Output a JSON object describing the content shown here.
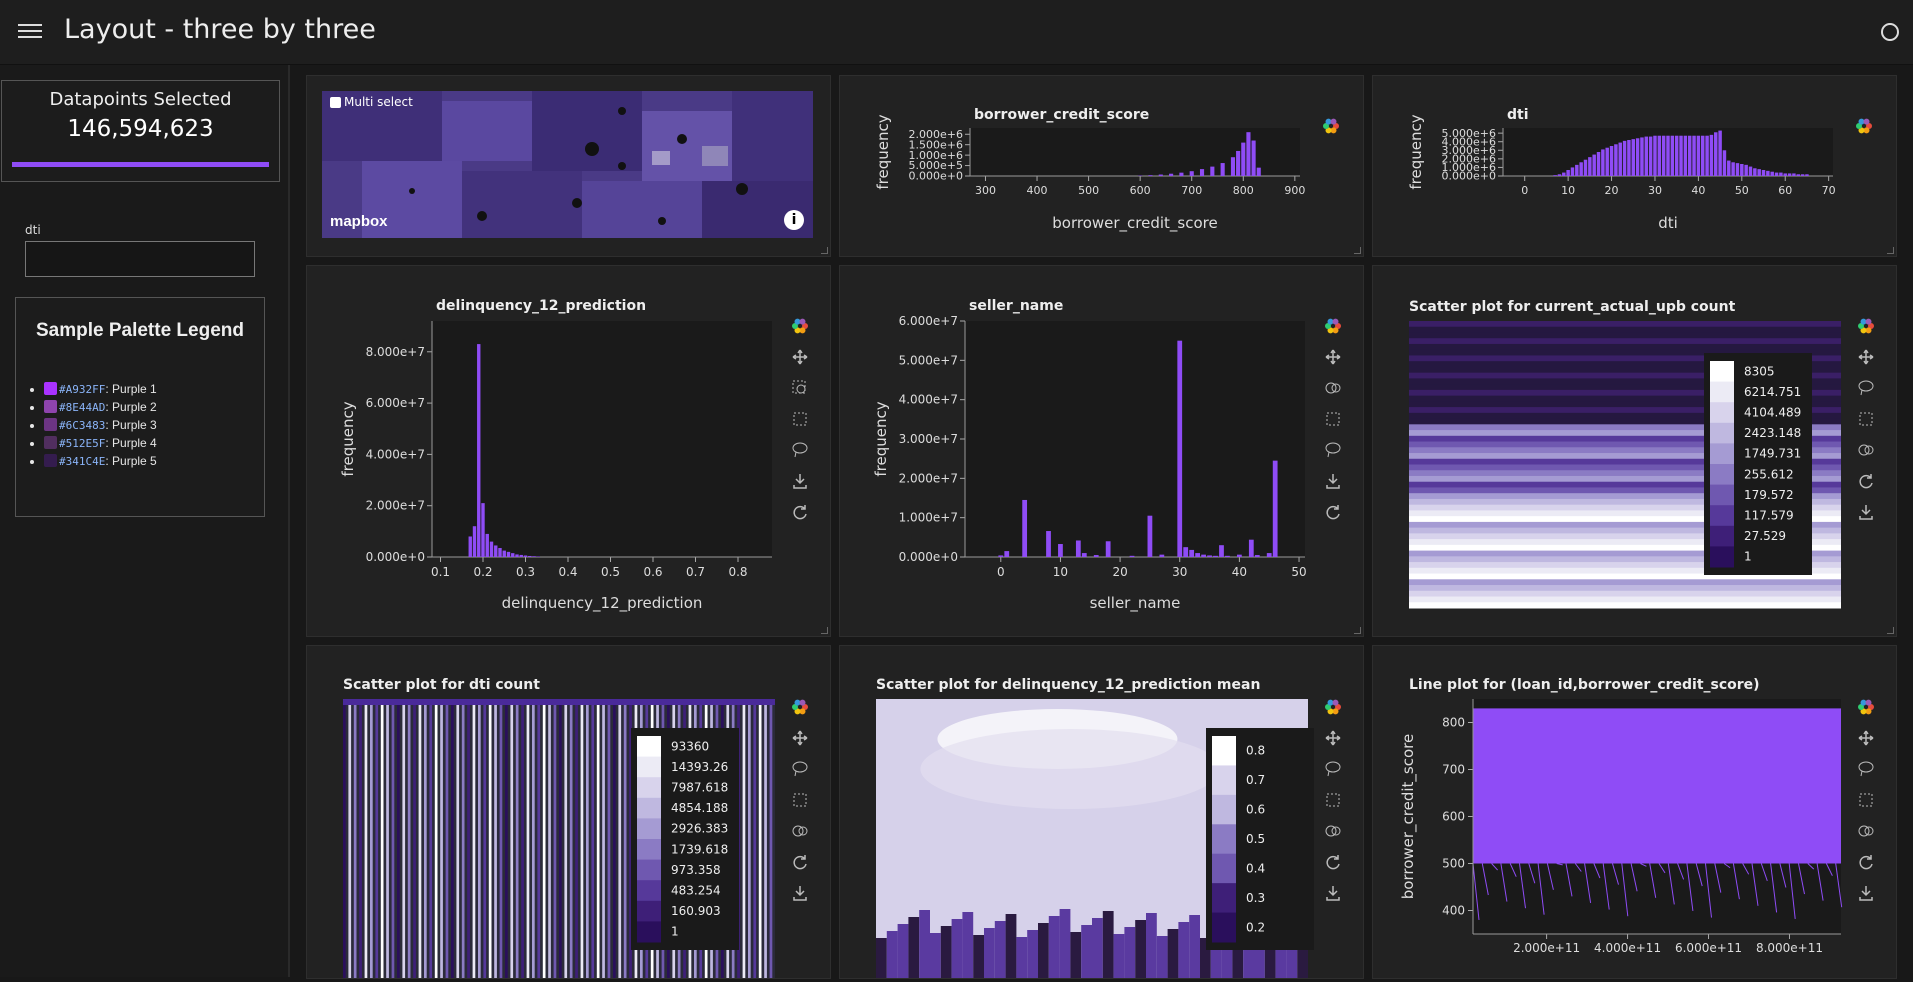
{
  "header": {
    "title": "Layout - three by three"
  },
  "sidebar": {
    "datapoints_title": "Datapoints Selected",
    "datapoints_value": "146,594,623",
    "datapoints_fill": 1.0,
    "dti_label": "dti",
    "dti_value": "",
    "legend_title": "Sample Palette Legend",
    "legend": [
      {
        "hex": "#A932FF",
        "label": ": Purple 1"
      },
      {
        "hex": "#8E44AD",
        "label": ": Purple 2"
      },
      {
        "hex": "#6C3483",
        "label": ": Purple 3"
      },
      {
        "hex": "#512E5F",
        "label": ": Purple 4"
      },
      {
        "hex": "#341C4E",
        "label": ": Purple 5"
      }
    ]
  },
  "map": {
    "multi_select_label": "Multi select",
    "logo_text": "mapbox",
    "info_icon": "info-icon"
  },
  "toolbar_icons": [
    "bokeh-logo-icon",
    "pan-icon",
    "box-zoom-icon",
    "box-select-icon",
    "lasso-icon",
    "save-icon",
    "reset-icon",
    "wheel-zoom-icon"
  ],
  "colors": {
    "accent": "#8f4cf6",
    "panel": "#222222",
    "background": "#181818"
  },
  "chart_data": [
    {
      "id": "borrower_credit_score",
      "type": "bar",
      "title": "borrower_credit_score",
      "xlabel": "borrower_credit_score",
      "ylabel": "frequency",
      "xticks": [
        "300",
        "400",
        "500",
        "600",
        "700",
        "800",
        "900"
      ],
      "yticks": [
        "0.000e+0",
        "5.000e+5",
        "1.000e+6",
        "1.500e+6",
        "2.000e+6"
      ],
      "xlim": [
        270,
        910
      ],
      "ylim": [
        0,
        2300000
      ],
      "x": [
        600,
        620,
        640,
        660,
        680,
        700,
        720,
        740,
        760,
        780,
        790,
        800,
        810,
        820,
        830
      ],
      "values": [
        20000,
        40000,
        70000,
        110000,
        160000,
        230000,
        330000,
        450000,
        620000,
        900000,
        1200000,
        1600000,
        2100000,
        1700000,
        400000
      ]
    },
    {
      "id": "dti",
      "type": "bar",
      "title": "dti",
      "xlabel": "dti",
      "ylabel": "frequency",
      "xticks": [
        "0",
        "10",
        "20",
        "30",
        "40",
        "50",
        "60",
        "70"
      ],
      "yticks": [
        "0.000e+0",
        "1.000e+6",
        "2.000e+6",
        "3.000e+6",
        "4.000e+6",
        "5.000e+6"
      ],
      "xlim": [
        -5,
        71
      ],
      "ylim": [
        0,
        5600000
      ],
      "x": [
        7,
        8,
        9,
        10,
        11,
        12,
        13,
        14,
        15,
        16,
        17,
        18,
        19,
        20,
        21,
        22,
        23,
        24,
        25,
        26,
        27,
        28,
        29,
        30,
        31,
        32,
        33,
        34,
        35,
        36,
        37,
        38,
        39,
        40,
        41,
        42,
        43,
        44,
        45,
        46,
        47,
        48,
        49,
        50,
        51,
        52,
        53,
        54,
        55,
        56,
        57,
        58,
        59,
        60,
        61,
        62,
        63,
        64,
        65
      ],
      "values": [
        100000,
        200000,
        400000,
        700000,
        1000000,
        1300000,
        1600000,
        1900000,
        2200000,
        2500000,
        2800000,
        3100000,
        3300000,
        3500000,
        3700000,
        3900000,
        4100000,
        4200000,
        4300000,
        4400000,
        4500000,
        4600000,
        4600000,
        4700000,
        4700000,
        4700000,
        4700000,
        4700000,
        4700000,
        4700000,
        4700000,
        4700000,
        4700000,
        4700000,
        4700000,
        4700000,
        4800000,
        5100000,
        5300000,
        3000000,
        1800000,
        1600000,
        1500000,
        1400000,
        1300000,
        1100000,
        900000,
        800000,
        700000,
        600000,
        500000,
        400000,
        400000,
        300000,
        300000,
        300000,
        200000,
        200000,
        200000
      ]
    },
    {
      "id": "delinquency_12_prediction",
      "type": "bar",
      "title": "delinquency_12_prediction",
      "xlabel": "delinquency_12_prediction",
      "ylabel": "frequency",
      "xticks": [
        "0.1",
        "0.2",
        "0.3",
        "0.4",
        "0.5",
        "0.6",
        "0.7",
        "0.8"
      ],
      "yticks": [
        "0.000e+0",
        "2.000e+7",
        "4.000e+7",
        "6.000e+7",
        "8.000e+7"
      ],
      "xlim": [
        0.08,
        0.88
      ],
      "ylim": [
        0,
        92000000
      ],
      "x": [
        0.17,
        0.18,
        0.19,
        0.2,
        0.21,
        0.22,
        0.23,
        0.24,
        0.25,
        0.26,
        0.27,
        0.28,
        0.29,
        0.3,
        0.31,
        0.32,
        0.33
      ],
      "values": [
        8000000,
        12000000,
        83000000,
        21000000,
        9000000,
        6000000,
        4500000,
        3500000,
        2500000,
        2000000,
        1500000,
        1000000,
        800000,
        600000,
        400000,
        300000,
        200000
      ]
    },
    {
      "id": "seller_name",
      "type": "bar",
      "title": "seller_name",
      "xlabel": "seller_name",
      "ylabel": "frequency",
      "xticks": [
        "0",
        "10",
        "20",
        "30",
        "40",
        "50"
      ],
      "yticks": [
        "0.000e+0",
        "1.000e+7",
        "2.000e+7",
        "3.000e+7",
        "4.000e+7",
        "5.000e+7",
        "6.000e+7"
      ],
      "xlim": [
        -6,
        51
      ],
      "ylim": [
        0,
        60000000
      ],
      "x": [
        0,
        1,
        4,
        8,
        10,
        13,
        14,
        16,
        18,
        22,
        25,
        27,
        30,
        31,
        32,
        33,
        34,
        35,
        36,
        37,
        38,
        40,
        42,
        43,
        45,
        46
      ],
      "values": [
        400000,
        1500000,
        14500000,
        6600000,
        3300000,
        4200000,
        1000000,
        500000,
        4000000,
        300000,
        10500000,
        600000,
        55000000,
        2500000,
        1800000,
        1000000,
        600000,
        400000,
        300000,
        3000000,
        300000,
        600000,
        4400000,
        500000,
        1000000,
        24500000
      ]
    },
    {
      "id": "current_actual_upb_count",
      "type": "heatmap",
      "title": "Scatter plot for current_actual_upb count",
      "colorbar_ticks": [
        "8305",
        "6214.751",
        "4104.489",
        "2423.148",
        "1749.731",
        "255.612",
        "179.572",
        "117.579",
        "27.529",
        "1"
      ]
    },
    {
      "id": "dti_count",
      "type": "heatmap",
      "title": "Scatter plot for dti count",
      "colorbar_ticks": [
        "93360",
        "14393.26",
        "7987.618",
        "4854.188",
        "2926.383",
        "1739.618",
        "973.358",
        "483.254",
        "160.903",
        "1"
      ]
    },
    {
      "id": "delinquency_mean",
      "type": "heatmap",
      "title": "Scatter plot for delinquency_12_prediction mean",
      "colorbar_ticks": [
        "0.8",
        "0.7",
        "0.6",
        "0.5",
        "0.4",
        "0.3",
        "0.2"
      ]
    },
    {
      "id": "loan_id_line",
      "type": "line",
      "title": "Line plot for (loan_id,borrower_credit_score)",
      "ylabel": "borrower_credit_score",
      "xticks": [
        "2.000e+11",
        "4.000e+11",
        "6.000e+11",
        "8.000e+11"
      ],
      "yticks": [
        "400",
        "500",
        "600",
        "700",
        "800"
      ],
      "ylim": [
        350,
        850
      ]
    }
  ]
}
